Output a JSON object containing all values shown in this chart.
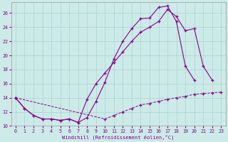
{
  "xlabel": "Windchill (Refroidissement éolien,°C)",
  "background_color": "#cceae8",
  "grid_color": "#aad4d0",
  "line_color": "#880088",
  "xlim": [
    -0.5,
    23.5
  ],
  "ylim": [
    10,
    27.5
  ],
  "yticks": [
    10,
    12,
    14,
    16,
    18,
    20,
    22,
    24,
    26
  ],
  "xticks": [
    0,
    1,
    2,
    3,
    4,
    5,
    6,
    7,
    8,
    9,
    10,
    11,
    12,
    13,
    14,
    15,
    16,
    17,
    18,
    19,
    20,
    21,
    22,
    23
  ],
  "curve1_x": [
    0,
    1,
    2,
    3,
    4,
    5,
    6,
    7,
    8,
    9,
    10,
    11,
    12,
    13,
    14,
    15,
    16,
    17,
    18,
    19,
    20
  ],
  "curve1_y": [
    14.0,
    12.5,
    11.5,
    11.0,
    11.0,
    10.8,
    11.0,
    10.5,
    11.2,
    13.5,
    16.2,
    19.5,
    22.0,
    23.8,
    25.2,
    25.3,
    26.8,
    27.0,
    24.8,
    18.5,
    16.5
  ],
  "curve2_x": [
    0,
    1,
    2,
    3,
    4,
    5,
    6,
    7,
    8,
    9,
    10,
    11,
    12,
    13,
    14,
    15,
    16,
    17,
    18,
    19,
    20,
    21,
    22
  ],
  "curve2_y": [
    14.0,
    12.5,
    11.5,
    11.0,
    11.0,
    10.8,
    11.0,
    10.5,
    13.8,
    16.0,
    17.5,
    19.0,
    20.5,
    22.0,
    23.3,
    24.0,
    24.8,
    26.5,
    25.5,
    23.5,
    23.8,
    18.5,
    16.5
  ],
  "curve3_x": [
    0,
    10,
    11,
    12,
    13,
    14,
    15,
    16,
    17,
    18,
    19,
    20,
    21,
    22,
    23
  ],
  "curve3_y": [
    14.0,
    11.0,
    11.5,
    12.0,
    12.5,
    13.0,
    13.2,
    13.5,
    13.8,
    14.0,
    14.2,
    14.5,
    14.6,
    14.7,
    14.8
  ]
}
